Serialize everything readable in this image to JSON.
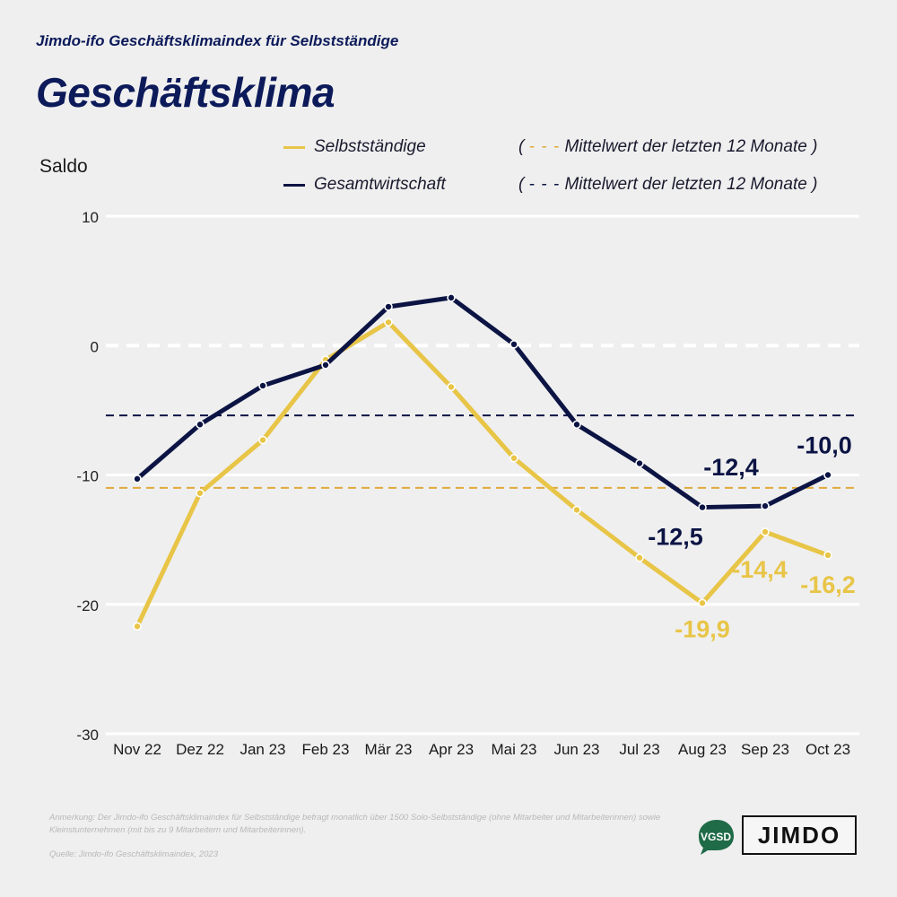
{
  "header": {
    "subtitle": "Jimdo-ifo Geschäftsklimaindex für Selbstständige",
    "title": "Geschäftsklima"
  },
  "legend": {
    "series": [
      {
        "label": "Selbstständige",
        "color": "#e8c547"
      },
      {
        "label": "Gesamtwirtschaft",
        "color": "#0c1444"
      }
    ],
    "avg": [
      {
        "open": "(",
        "dash": "- - -",
        "label": "Mittelwert der letzten 12 Monate",
        "close": ")",
        "color": "#e0a93a"
      },
      {
        "open": "(",
        "dash": "- - -",
        "label": "Mittelwert der letzten 12 Monate",
        "close": ")",
        "color": "#0c1444"
      }
    ]
  },
  "footer": {
    "note": "Anmerkung: Der Jimdo-ifo Geschäftsklimaindex für Selbstständige befragt monatlich über 1500 Solo-Selbstständige (ohne Mitarbeiter und Mitarbeiterinnen) sowie Kleinstunternehmen (mit bis zu 9 Mitarbeitern und Mitarbeiterinnen).",
    "source": "Quelle: Jimdo-ifo Geschäftsklimaindex, 2023",
    "logo_vgsd": "VGSD",
    "logo_jimdo": "JIMDO"
  },
  "chart_data": {
    "type": "line",
    "title": "Geschäftsklima",
    "ylabel": "Saldo",
    "xlabel": "",
    "ylim": [
      -30,
      10
    ],
    "yticks": [
      10,
      0,
      -10,
      -20,
      -30
    ],
    "ytick_labels": [
      "10",
      "0",
      "-10",
      "-20",
      "-30"
    ],
    "grid": true,
    "legend_position": "top-right",
    "categories": [
      "Nov 22",
      "Dez 22",
      "Jan 23",
      "Feb 23",
      "Mär 23",
      "Apr 23",
      "Mai 23",
      "Jun 23",
      "Jul 23",
      "Aug 23",
      "Sep 23",
      "Oct 23"
    ],
    "series": [
      {
        "name": "Selbstständige",
        "color": "#e8c547",
        "values": [
          -21.7,
          -11.4,
          -7.3,
          -1.1,
          1.8,
          -3.2,
          -8.7,
          -12.7,
          -16.4,
          -19.9,
          -14.4,
          -16.2
        ]
      },
      {
        "name": "Gesamtwirtschaft",
        "color": "#0c1444",
        "values": [
          -10.3,
          -6.1,
          -3.1,
          -1.5,
          3.0,
          3.7,
          0.1,
          -6.1,
          -9.1,
          -12.5,
          -12.4,
          -10.0
        ]
      }
    ],
    "reference_lines": [
      {
        "name": "Mittelwert Selbstständige (12 Monate)",
        "value": -11.0,
        "color": "#e0a93a"
      },
      {
        "name": "Mittelwert Gesamtwirtschaft (12 Monate)",
        "value": -5.4,
        "color": "#0c1444"
      }
    ],
    "annotations": [
      {
        "series": "Gesamtwirtschaft",
        "category": "Aug 23",
        "text": "-12,5"
      },
      {
        "series": "Gesamtwirtschaft",
        "category": "Sep 23",
        "text": "-12,4"
      },
      {
        "series": "Gesamtwirtschaft",
        "category": "Oct 23",
        "text": "-10,0"
      },
      {
        "series": "Selbstständige",
        "category": "Aug 23",
        "text": "-19,9"
      },
      {
        "series": "Selbstständige",
        "category": "Sep 23",
        "text": "-14,4"
      },
      {
        "series": "Selbstständige",
        "category": "Oct 23",
        "text": "-16,2"
      }
    ]
  }
}
